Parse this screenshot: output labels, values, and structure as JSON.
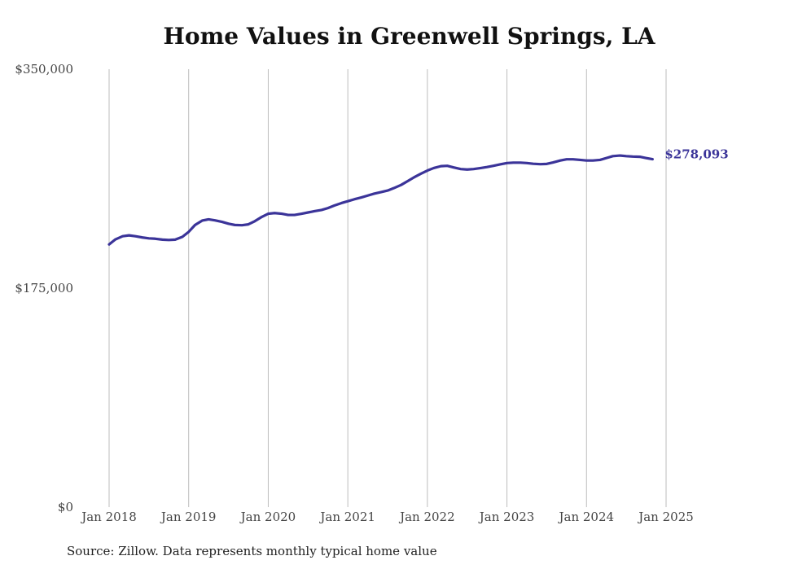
{
  "chart_data": {
    "type": "line",
    "title": "Home Values in Greenwell Springs, LA",
    "xlabel": "",
    "ylabel": "",
    "ylim": [
      0,
      350000
    ],
    "y_ticks": [
      {
        "value": 0,
        "label": "$0"
      },
      {
        "value": 175000,
        "label": "$175,000"
      },
      {
        "value": 350000,
        "label": "$350,000"
      }
    ],
    "x_ticks": [
      {
        "value": 2018.0,
        "label": "Jan 2018"
      },
      {
        "value": 2019.0,
        "label": "Jan 2019"
      },
      {
        "value": 2020.0,
        "label": "Jan 2020"
      },
      {
        "value": 2021.0,
        "label": "Jan 2021"
      },
      {
        "value": 2022.0,
        "label": "Jan 2022"
      },
      {
        "value": 2023.0,
        "label": "Jan 2023"
      },
      {
        "value": 2024.0,
        "label": "Jan 2024"
      },
      {
        "value": 2025.0,
        "label": "Jan 2025"
      }
    ],
    "xlim": [
      2017.85,
      2025.65
    ],
    "grid": "vertical",
    "line_color": "#3b3499",
    "series": [
      {
        "values": [
          [
            2018.0,
            210000
          ],
          [
            2018.08,
            214000
          ],
          [
            2018.17,
            216500
          ],
          [
            2018.25,
            217200
          ],
          [
            2018.33,
            216500
          ],
          [
            2018.42,
            215500
          ],
          [
            2018.5,
            214800
          ],
          [
            2018.58,
            214500
          ],
          [
            2018.67,
            213800
          ],
          [
            2018.75,
            213500
          ],
          [
            2018.83,
            213800
          ],
          [
            2018.92,
            216000
          ],
          [
            2019.0,
            220000
          ],
          [
            2019.08,
            225500
          ],
          [
            2019.17,
            229000
          ],
          [
            2019.25,
            230000
          ],
          [
            2019.33,
            229200
          ],
          [
            2019.42,
            228000
          ],
          [
            2019.5,
            226500
          ],
          [
            2019.58,
            225500
          ],
          [
            2019.67,
            225300
          ],
          [
            2019.75,
            226000
          ],
          [
            2019.83,
            228500
          ],
          [
            2019.92,
            232000
          ],
          [
            2020.0,
            234500
          ],
          [
            2020.08,
            235000
          ],
          [
            2020.17,
            234500
          ],
          [
            2020.25,
            233500
          ],
          [
            2020.33,
            233500
          ],
          [
            2020.42,
            234500
          ],
          [
            2020.5,
            235500
          ],
          [
            2020.58,
            236500
          ],
          [
            2020.67,
            237500
          ],
          [
            2020.75,
            239000
          ],
          [
            2020.83,
            241000
          ],
          [
            2020.92,
            243000
          ],
          [
            2021.0,
            244500
          ],
          [
            2021.08,
            246000
          ],
          [
            2021.17,
            247500
          ],
          [
            2021.25,
            249000
          ],
          [
            2021.33,
            250500
          ],
          [
            2021.42,
            251800
          ],
          [
            2021.5,
            253000
          ],
          [
            2021.58,
            255000
          ],
          [
            2021.67,
            257500
          ],
          [
            2021.75,
            260500
          ],
          [
            2021.83,
            263500
          ],
          [
            2021.92,
            266500
          ],
          [
            2022.0,
            269000
          ],
          [
            2022.08,
            271000
          ],
          [
            2022.17,
            272500
          ],
          [
            2022.25,
            272800
          ],
          [
            2022.33,
            271500
          ],
          [
            2022.42,
            270200
          ],
          [
            2022.5,
            269800
          ],
          [
            2022.58,
            270200
          ],
          [
            2022.67,
            271000
          ],
          [
            2022.75,
            271800
          ],
          [
            2022.83,
            272800
          ],
          [
            2022.92,
            274000
          ],
          [
            2023.0,
            275000
          ],
          [
            2023.08,
            275300
          ],
          [
            2023.17,
            275300
          ],
          [
            2023.25,
            275000
          ],
          [
            2023.33,
            274400
          ],
          [
            2023.42,
            274100
          ],
          [
            2023.5,
            274300
          ],
          [
            2023.58,
            275500
          ],
          [
            2023.67,
            277000
          ],
          [
            2023.75,
            278000
          ],
          [
            2023.83,
            278000
          ],
          [
            2023.92,
            277500
          ],
          [
            2024.0,
            277000
          ],
          [
            2024.08,
            277000
          ],
          [
            2024.17,
            277500
          ],
          [
            2024.25,
            279000
          ],
          [
            2024.33,
            280500
          ],
          [
            2024.42,
            281000
          ],
          [
            2024.5,
            280500
          ],
          [
            2024.58,
            280200
          ],
          [
            2024.67,
            280000
          ],
          [
            2024.75,
            279000
          ],
          [
            2024.83,
            278093
          ]
        ]
      }
    ],
    "end_label": "$278,093"
  },
  "source_note": "Source: Zillow. Data represents monthly typical home value"
}
